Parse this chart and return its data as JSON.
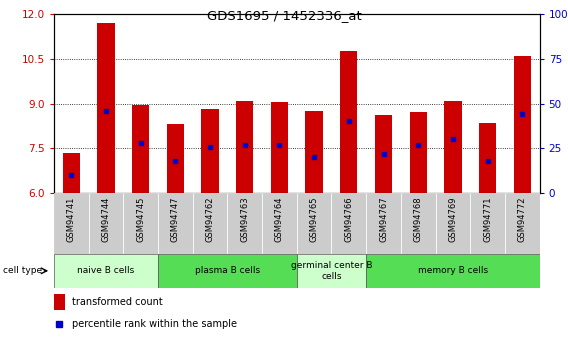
{
  "title": "GDS1695 / 1452336_at",
  "samples": [
    "GSM94741",
    "GSM94744",
    "GSM94745",
    "GSM94747",
    "GSM94762",
    "GSM94763",
    "GSM94764",
    "GSM94765",
    "GSM94766",
    "GSM94767",
    "GSM94768",
    "GSM94769",
    "GSM94771",
    "GSM94772"
  ],
  "transformed_count": [
    7.35,
    11.7,
    8.95,
    8.3,
    8.8,
    9.1,
    9.05,
    8.75,
    10.75,
    8.6,
    8.7,
    9.1,
    8.35,
    10.6
  ],
  "percentile_rank": [
    10,
    46,
    28,
    18,
    26,
    27,
    27,
    20,
    40,
    22,
    27,
    30,
    18,
    44
  ],
  "ylim": [
    6,
    12
  ],
  "y2lim": [
    0,
    100
  ],
  "yticks": [
    6,
    7.5,
    9,
    10.5,
    12
  ],
  "y2ticks": [
    0,
    25,
    50,
    75,
    100
  ],
  "bar_color": "#cc0000",
  "dot_color": "#0000cc",
  "cell_types": [
    {
      "label": "naive B cells",
      "start": 0,
      "end": 3,
      "color": "#ccffcc"
    },
    {
      "label": "plasma B cells",
      "start": 3,
      "end": 7,
      "color": "#55dd55"
    },
    {
      "label": "germinal center B\ncells",
      "start": 7,
      "end": 9,
      "color": "#ccffcc"
    },
    {
      "label": "memory B cells",
      "start": 9,
      "end": 14,
      "color": "#55dd55"
    }
  ],
  "bar_color_legend": "#cc0000",
  "dot_color_legend": "#0000cc",
  "tick_label_bg": "#cccccc",
  "left_tick_color": "#cc0000",
  "right_tick_color": "#0000cc"
}
